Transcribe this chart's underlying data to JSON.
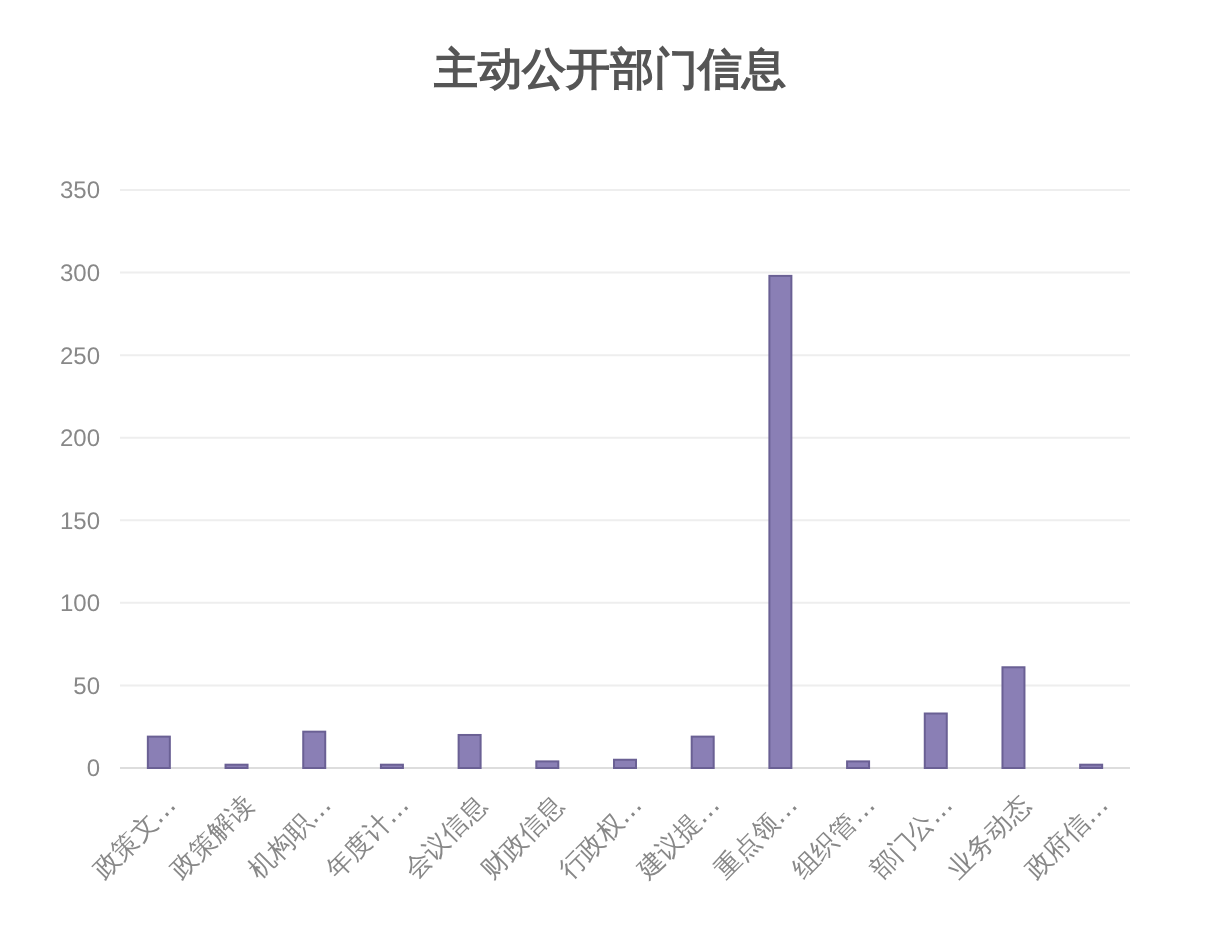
{
  "chart_data": {
    "type": "bar",
    "title": "主动公开部门信息",
    "categories": [
      "政策文…",
      "政策解读",
      "机构职…",
      "年度计…",
      "会议信息",
      "财政信息",
      "行政权…",
      "建议提…",
      "重点领…",
      "组织管…",
      "部门公…",
      "业务动态",
      "政府信…"
    ],
    "values": [
      19,
      2,
      22,
      2,
      20,
      4,
      5,
      19,
      298,
      4,
      33,
      61,
      2
    ],
    "color": "#8a7fb5",
    "ylim": [
      0,
      350
    ],
    "yticks": [
      0,
      50,
      100,
      150,
      200,
      250,
      300,
      350
    ],
    "grid": "y"
  }
}
